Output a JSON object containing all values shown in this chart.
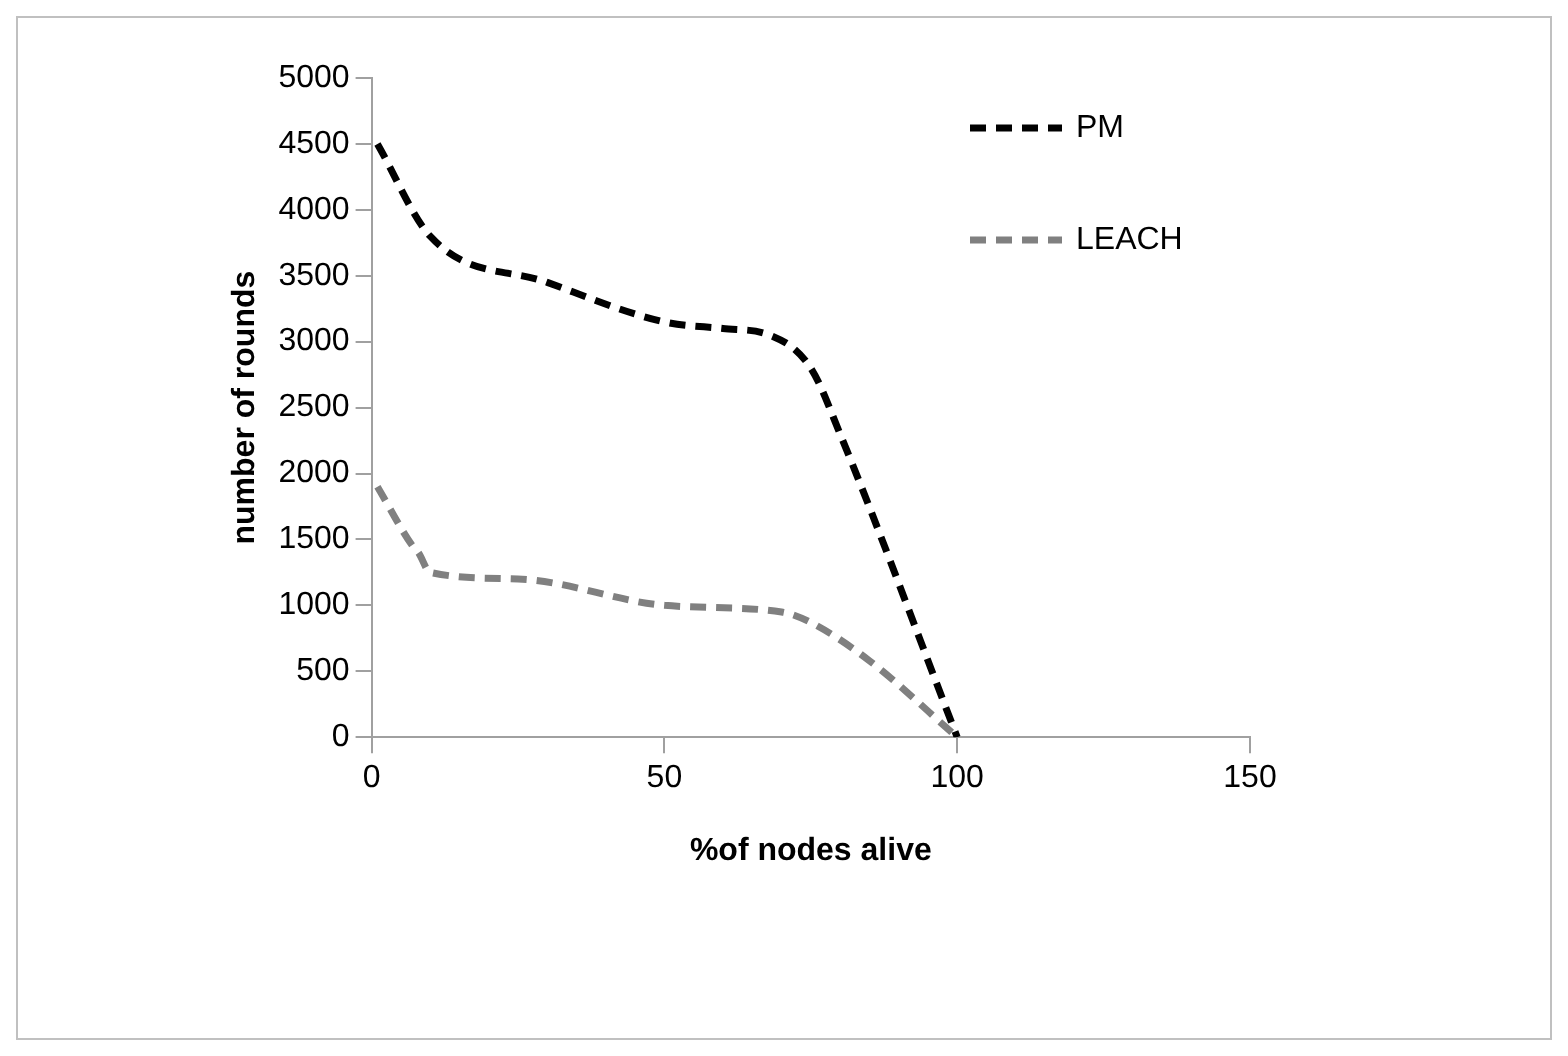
{
  "chart_data": {
    "type": "line",
    "xlabel": "%of nodes alive",
    "ylabel": "number of rounds",
    "xlim": [
      0,
      150
    ],
    "xticks": [
      0,
      50,
      100,
      150
    ],
    "ylim": [
      0,
      5000
    ],
    "yticks": [
      0,
      500,
      1000,
      1500,
      2000,
      2500,
      3000,
      3500,
      4000,
      4500,
      5000
    ],
    "grid": false,
    "legend": "top right",
    "line_style": "dashed",
    "marker": "none",
    "series": [
      {
        "name": "PM",
        "color": "#000000",
        "x": [
          1,
          10,
          30,
          50,
          60,
          68,
          75,
          80,
          100
        ],
        "values": [
          4500,
          3800,
          3450,
          3150,
          3100,
          3050,
          2800,
          2300,
          0
        ]
      },
      {
        "name": "LEACH",
        "color": "#808080",
        "x": [
          1,
          7,
          8,
          10,
          25,
          50,
          70,
          75,
          85,
          100
        ],
        "values": [
          1900,
          1450,
          1400,
          1250,
          1200,
          1000,
          950,
          870,
          580,
          0
        ]
      }
    ]
  }
}
